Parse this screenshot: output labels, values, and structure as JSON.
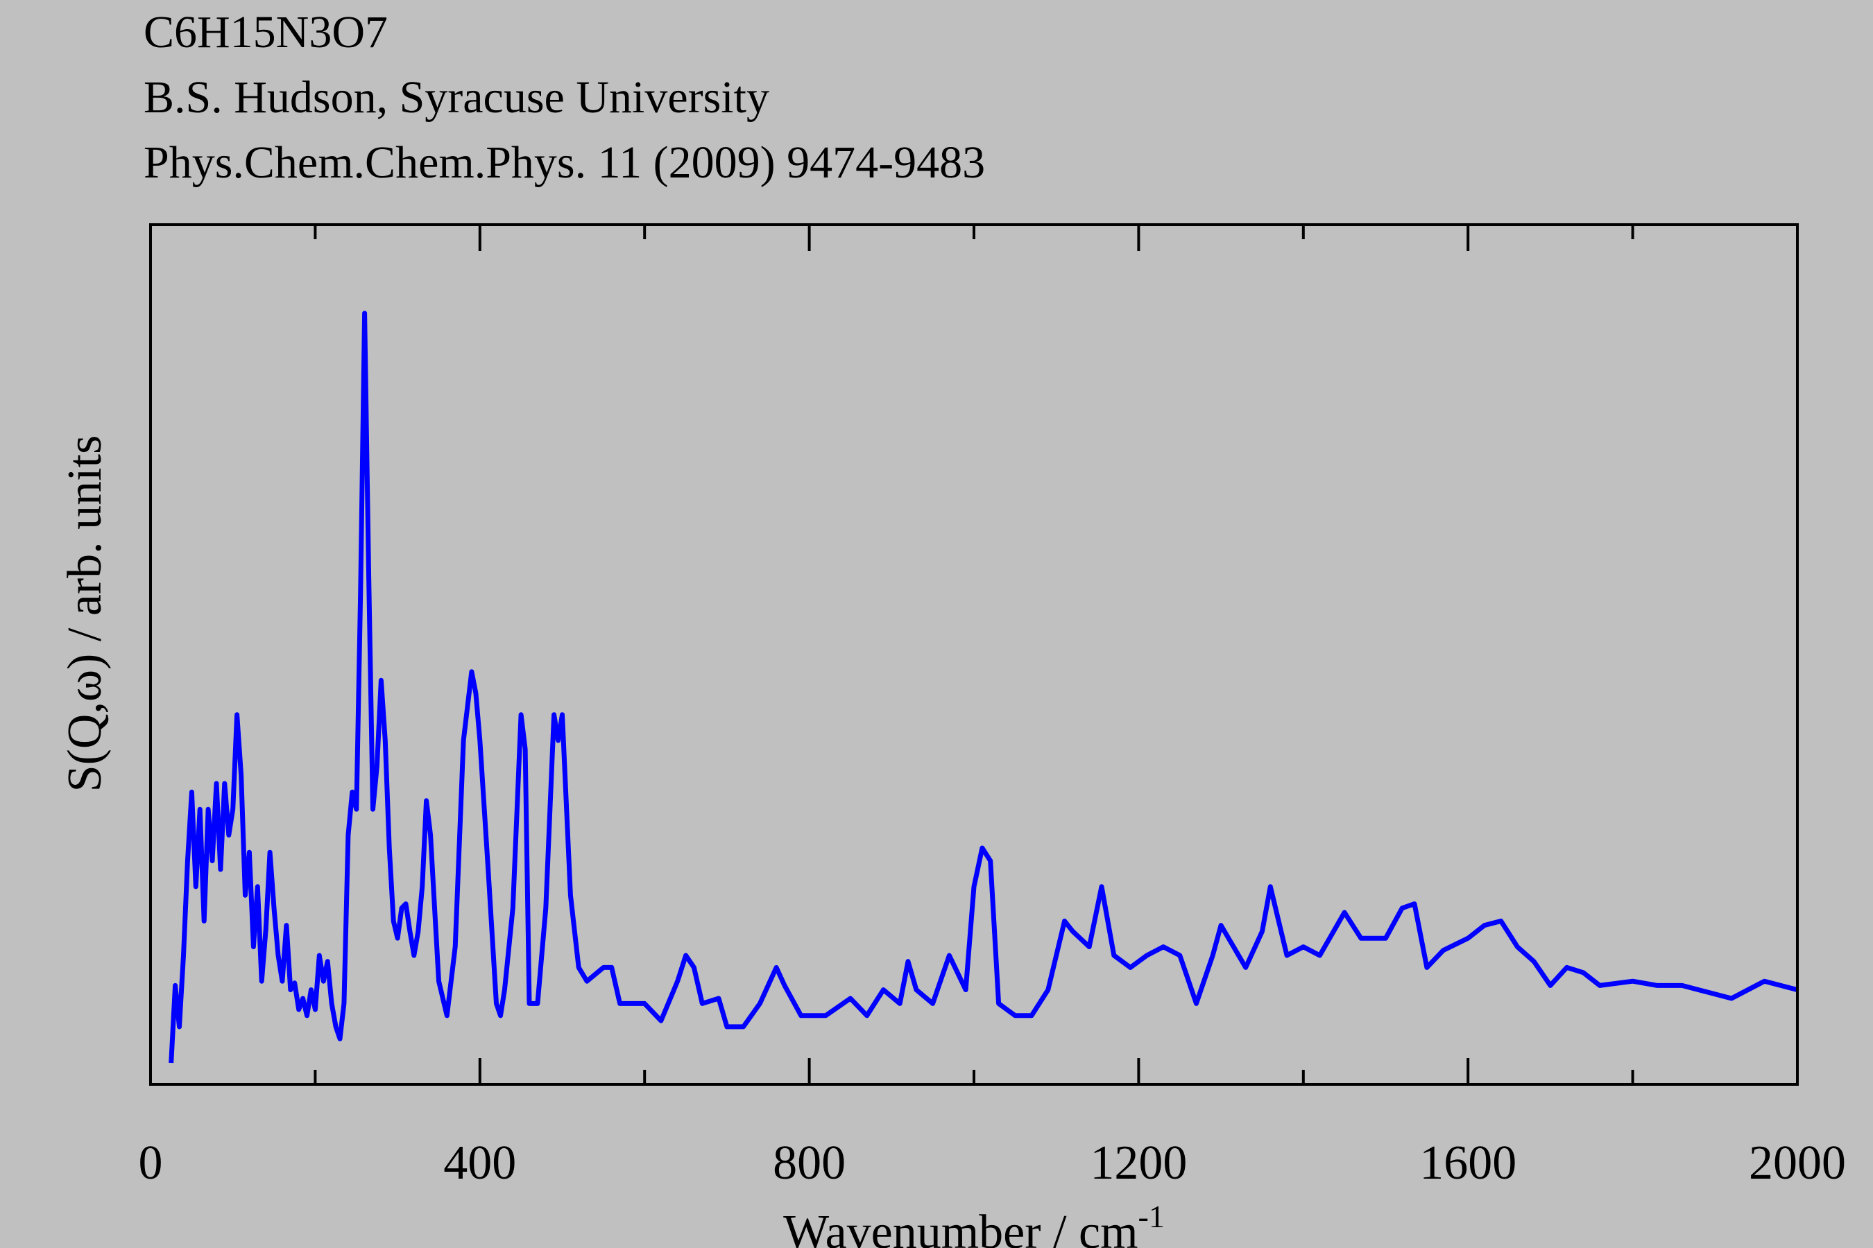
{
  "chart_data": {
    "type": "line",
    "title_lines": [
      "C6H15N3O7",
      "B.S. Hudson, Syracuse University",
      "Phys.Chem.Chem.Phys. 11 (2009) 9474-9483"
    ],
    "xlabel": "Wavenumber / cm",
    "xlabel_superscript": "-1",
    "ylabel": "S(Q,ω) / arb. units",
    "xlim": [
      0,
      2000
    ],
    "xticks": [
      0,
      400,
      800,
      1200,
      1600,
      2000
    ],
    "xminor_ticks": [
      200,
      600,
      1000,
      1400,
      1800
    ],
    "ylim": [
      0,
      100
    ],
    "series": [
      {
        "name": "S(Q,ω)",
        "color": "#0000ff",
        "x": [
          25,
          30,
          35,
          40,
          45,
          50,
          55,
          60,
          65,
          70,
          75,
          80,
          85,
          90,
          95,
          100,
          105,
          110,
          115,
          120,
          125,
          130,
          135,
          140,
          145,
          150,
          155,
          160,
          165,
          170,
          175,
          180,
          185,
          190,
          195,
          200,
          205,
          210,
          215,
          220,
          225,
          230,
          235,
          240,
          245,
          250,
          255,
          260,
          265,
          270,
          275,
          280,
          285,
          290,
          295,
          300,
          305,
          310,
          315,
          320,
          325,
          330,
          335,
          340,
          345,
          350,
          360,
          370,
          380,
          390,
          395,
          400,
          410,
          420,
          425,
          430,
          440,
          450,
          455,
          460,
          470,
          480,
          490,
          495,
          500,
          510,
          520,
          530,
          550,
          560,
          570,
          580,
          600,
          620,
          640,
          650,
          660,
          670,
          690,
          700,
          720,
          740,
          760,
          770,
          790,
          820,
          850,
          870,
          890,
          910,
          920,
          930,
          950,
          970,
          990,
          1000,
          1010,
          1020,
          1030,
          1050,
          1070,
          1090,
          1110,
          1120,
          1140,
          1155,
          1170,
          1190,
          1210,
          1230,
          1250,
          1270,
          1290,
          1300,
          1330,
          1350,
          1360,
          1380,
          1400,
          1420,
          1450,
          1470,
          1500,
          1520,
          1535,
          1550,
          1570,
          1600,
          1620,
          1640,
          1660,
          1680,
          1700,
          1720,
          1740,
          1760,
          1800,
          1830,
          1860,
          1880,
          1920,
          1960,
          2000
        ],
        "values": [
          2.5,
          11.5,
          6.7,
          15,
          26,
          34,
          23,
          32,
          19,
          32,
          26,
          35,
          25,
          35,
          29,
          32,
          43,
          36,
          22,
          27,
          16,
          23,
          12,
          18,
          27,
          20.5,
          15,
          12,
          18.5,
          11,
          11.8,
          8.7,
          10,
          8,
          11,
          8.7,
          15,
          12,
          14.3,
          9.4,
          6.7,
          5.3,
          9.4,
          29,
          34,
          32,
          57,
          89.7,
          59,
          32,
          37,
          47,
          40,
          27.5,
          19,
          17,
          20.5,
          21,
          17.8,
          15,
          17.8,
          23,
          33,
          29,
          20.5,
          12,
          8,
          16,
          40,
          48,
          45.5,
          40,
          25,
          9.4,
          8,
          11,
          20.5,
          43,
          39,
          9.4,
          9.4,
          20.5,
          43,
          40,
          43,
          22,
          13.6,
          12,
          13.6,
          13.6,
          9.4,
          9.4,
          9.4,
          7.4,
          12,
          15,
          13.6,
          9.4,
          10,
          6.7,
          6.7,
          9.4,
          13.6,
          11.5,
          8,
          8,
          10,
          8,
          11,
          9.4,
          14.3,
          11,
          9.4,
          15,
          11,
          23,
          27.5,
          26,
          9.4,
          8,
          8,
          11,
          19,
          17.8,
          16,
          23,
          15,
          13.6,
          15,
          16,
          15,
          9.4,
          15,
          18.5,
          13.6,
          17.8,
          23,
          15,
          16,
          15,
          20,
          17,
          17,
          20.5,
          21,
          13.6,
          15.6,
          17,
          18.5,
          19,
          16,
          14.3,
          11.5,
          13.6,
          13,
          11.5,
          12,
          11.5,
          11.5,
          11,
          10,
          12,
          11
        ]
      }
    ]
  }
}
